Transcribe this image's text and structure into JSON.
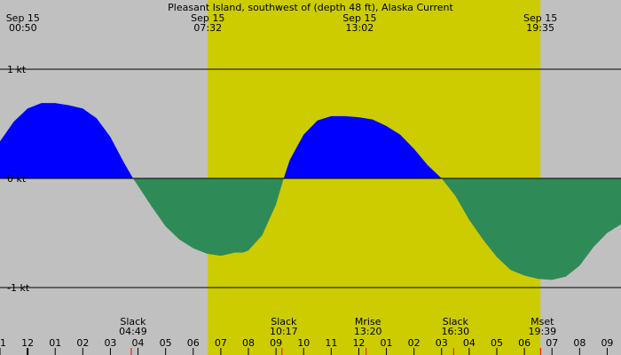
{
  "chart_data": {
    "type": "area",
    "title": "Pleasant Island, southwest of (depth 48 ft), Alaska Current",
    "xlabel": "",
    "ylabel": "",
    "x_range_hours": [
      -13.0,
      9.5
    ],
    "ylim": [
      -1.5,
      1.5
    ],
    "y_ticks": [
      {
        "value": 1,
        "label": "1 kt"
      },
      {
        "value": 0,
        "label": "0 kt"
      },
      {
        "value": -1,
        "label": "-1 kt"
      }
    ],
    "x_tick_labels": [
      "11",
      "12",
      "01",
      "02",
      "03",
      "04",
      "05",
      "06",
      "07",
      "08",
      "09",
      "10",
      "11",
      "12",
      "01",
      "02",
      "03",
      "04",
      "05",
      "06",
      "07",
      "08",
      "09"
    ],
    "x_tick_hours": [
      -13,
      -12,
      -11,
      -10,
      -9,
      -8,
      -7,
      -6,
      -5,
      -4,
      -3,
      -2,
      -1,
      0,
      1,
      2,
      3,
      4,
      5,
      6,
      7,
      8,
      9
    ],
    "daylight_hours": [
      -5.47,
      6.58
    ],
    "top_events": [
      {
        "date": "Sep 15",
        "time": "00:50",
        "hour": -12.17
      },
      {
        "date": "Sep 15",
        "time": "07:32",
        "hour": -5.47
      },
      {
        "date": "Sep 15",
        "time": "13:02",
        "hour": 0.03
      },
      {
        "date": "Sep 15",
        "time": "19:35",
        "hour": 6.58
      }
    ],
    "bottom_events": [
      {
        "label": "Slack",
        "time": "04:49",
        "hour": -8.18
      },
      {
        "label": "Slack",
        "time": "10:17",
        "hour": -2.72
      },
      {
        "label": "Mrise",
        "time": "13:20",
        "hour": 0.33
      },
      {
        "label": "Slack",
        "time": "16:30",
        "hour": 3.5
      },
      {
        "label": "Mset",
        "time": "19:39",
        "hour": 6.65
      }
    ],
    "red_markers_hours": [
      -8.18,
      -2.72,
      0.33,
      3.5,
      6.65
    ],
    "series": [
      {
        "x": [
          -13.0,
          -12.5,
          -12.0,
          -11.5,
          -11.0,
          -10.5,
          -10.0,
          -9.5,
          -9.0,
          -8.5,
          -8.18,
          -7.5,
          -7.0,
          -6.5,
          -6.0,
          -5.5,
          -5.0,
          -4.5,
          -4.2,
          -4.0,
          -3.5,
          -3.0,
          -2.72,
          -2.5,
          -2.0,
          -1.5,
          -1.0,
          -0.5,
          0.0,
          0.5,
          1.0,
          1.5,
          2.0,
          2.5,
          3.0,
          3.5,
          4.0,
          4.5,
          5.0,
          5.5,
          6.0,
          6.5,
          7.0,
          7.5,
          8.0,
          8.5,
          9.0,
          9.5
        ],
        "y": [
          0.34,
          0.52,
          0.64,
          0.69,
          0.69,
          0.67,
          0.64,
          0.55,
          0.38,
          0.14,
          0.0,
          -0.26,
          -0.44,
          -0.56,
          -0.64,
          -0.69,
          -0.71,
          -0.68,
          -0.68,
          -0.66,
          -0.52,
          -0.24,
          0.0,
          0.17,
          0.4,
          0.53,
          0.57,
          0.57,
          0.56,
          0.54,
          0.48,
          0.4,
          0.27,
          0.12,
          0.0,
          -0.16,
          -0.38,
          -0.56,
          -0.72,
          -0.84,
          -0.89,
          -0.92,
          -0.93,
          -0.9,
          -0.8,
          -0.63,
          -0.5,
          -0.42
        ]
      }
    ],
    "colors": {
      "background": "#c0c0c0",
      "daylight": "#cccc00",
      "flood": "#0000ff",
      "ebb": "#2e8b57",
      "grid": "#000000",
      "marker": "#ff0000"
    }
  }
}
